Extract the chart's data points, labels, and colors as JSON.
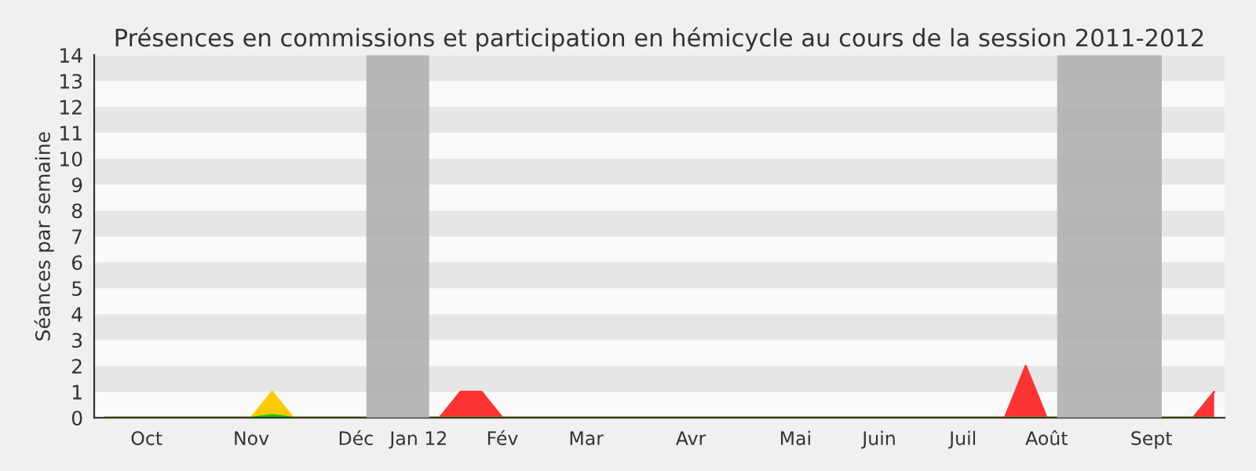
{
  "chart_data": {
    "type": "area",
    "title": "Présences en commissions et participation en hémicycle au cours de la session 2011-2012",
    "ylabel": "Séances par semaine",
    "categories": [
      null,
      null,
      "Oct",
      null,
      null,
      null,
      null,
      "Nov",
      null,
      null,
      null,
      null,
      "Déc",
      null,
      null,
      "Jan 12",
      null,
      null,
      null,
      "Fév",
      null,
      null,
      null,
      "Mar",
      null,
      null,
      null,
      null,
      "Avr",
      null,
      null,
      null,
      null,
      "Mai",
      null,
      null,
      null,
      "Juin",
      null,
      null,
      null,
      "Juil",
      null,
      null,
      null,
      "Août",
      null,
      null,
      null,
      null,
      "Sept",
      null,
      null,
      null
    ],
    "series": [
      {
        "color": "#ff3333",
        "values": [
          0,
          0,
          0,
          0,
          0,
          0,
          0,
          0,
          0,
          0,
          0,
          0,
          0,
          0,
          0,
          0,
          0,
          1,
          1,
          0,
          0,
          0,
          0,
          0,
          0,
          0,
          0,
          0,
          0,
          0,
          0,
          0,
          0,
          0,
          0,
          0,
          0,
          0,
          0,
          0,
          0,
          0,
          0,
          0,
          2,
          0,
          0,
          0,
          0,
          0,
          0,
          0,
          0,
          1
        ]
      },
      {
        "color": "#ffcc00",
        "values": [
          0,
          0,
          0,
          0,
          0,
          0,
          0,
          0,
          1,
          0,
          0,
          0,
          0,
          0,
          0,
          0,
          0,
          0,
          0,
          0,
          0,
          0,
          0,
          0,
          0,
          0,
          0,
          0,
          0,
          0,
          0,
          0,
          0,
          0,
          0,
          0,
          0,
          0,
          0,
          0,
          0,
          0,
          0,
          0,
          0,
          0,
          0,
          0,
          0,
          0,
          0,
          0,
          0,
          0
        ]
      },
      {
        "color": "#00cc00",
        "values": [
          0,
          0,
          0,
          0,
          0,
          0,
          0,
          0,
          0.1,
          0,
          0,
          0,
          0,
          0,
          0,
          0,
          0,
          0,
          0,
          0,
          0,
          0,
          0,
          0,
          0,
          0,
          0,
          0,
          0,
          0,
          0,
          0,
          0,
          0,
          0,
          0,
          0,
          0,
          0,
          0,
          0,
          0,
          0,
          0,
          0,
          0,
          0,
          0,
          0,
          0,
          0,
          0,
          0,
          0
        ]
      }
    ],
    "ylim": [
      0,
      14
    ],
    "yticks": [
      0,
      1,
      2,
      3,
      4,
      5,
      6,
      7,
      8,
      9,
      10,
      11,
      12,
      13,
      14
    ],
    "bands": [
      {
        "axis": "y",
        "from": 1,
        "to": 2,
        "color": "#e6e6e6"
      },
      {
        "axis": "y",
        "from": 3,
        "to": 4,
        "color": "#e6e6e6"
      },
      {
        "axis": "y",
        "from": 5,
        "to": 6,
        "color": "#e6e6e6"
      },
      {
        "axis": "y",
        "from": 7,
        "to": 8,
        "color": "#e6e6e6"
      },
      {
        "axis": "y",
        "from": 9,
        "to": 10,
        "color": "#e6e6e6"
      },
      {
        "axis": "y",
        "from": 11,
        "to": 12,
        "color": "#e6e6e6"
      },
      {
        "axis": "y",
        "from": 13,
        "to": 14,
        "color": "#e6e6e6"
      },
      {
        "axis": "x",
        "from": "Déc",
        "to": "Jan 12",
        "color": "#b0b0b0"
      },
      {
        "axis": "x",
        "from": "Août",
        "to": "Sept",
        "color": "#b0b0b0"
      }
    ],
    "grid": false,
    "legend": false
  }
}
